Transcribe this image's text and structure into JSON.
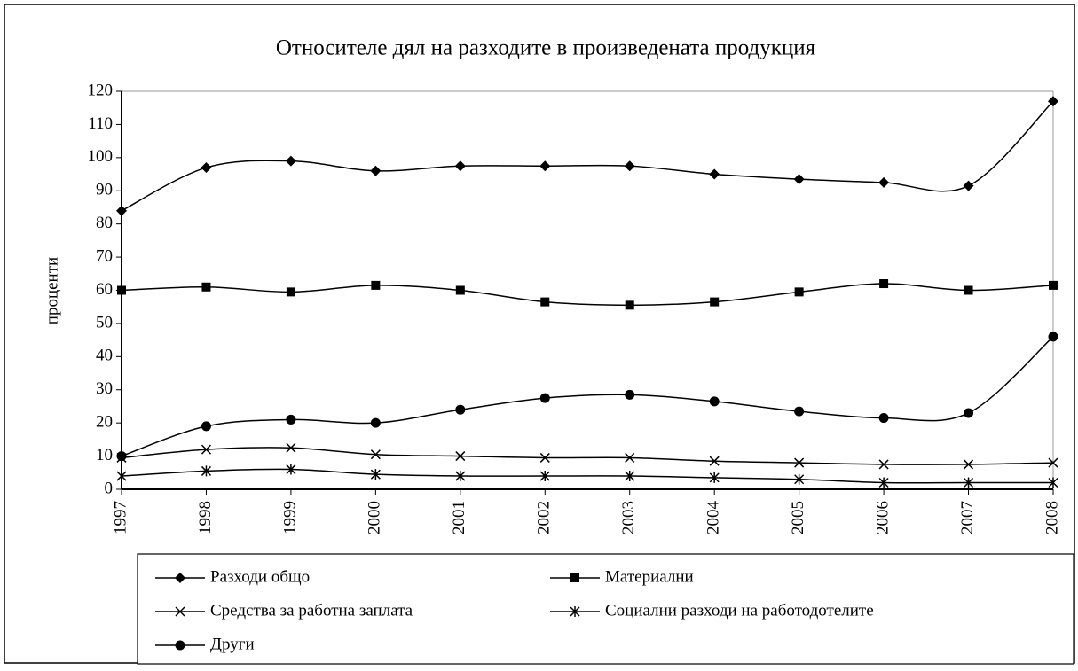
{
  "chart_data": {
    "type": "line",
    "title": "Относителе дял на разходите в произведената продукция",
    "y_label": "проценти",
    "categories": [
      "1997",
      "1998",
      "1999",
      "2000",
      "2001",
      "2002",
      "2003",
      "2004",
      "2005",
      "2006",
      "2007",
      "2008"
    ],
    "ylim": [
      0,
      120
    ],
    "yticks": [
      0,
      10,
      20,
      30,
      40,
      50,
      60,
      70,
      80,
      90,
      100,
      110,
      120
    ],
    "smooth": true,
    "series": [
      {
        "name": "Разходи общо",
        "color": "#000000",
        "marker": "diamond",
        "values": [
          84,
          97,
          99,
          96,
          97.5,
          97.5,
          97.5,
          95,
          93.5,
          92.5,
          91.5,
          117
        ]
      },
      {
        "name": "Материални",
        "color": "#000000",
        "marker": "square",
        "values": [
          60,
          61,
          59.5,
          61.5,
          60,
          56.5,
          55.5,
          56.5,
          59.5,
          62,
          60,
          61.5
        ]
      },
      {
        "name": "Средства за работна заплата",
        "color": "#000000",
        "marker": "x",
        "values": [
          9.5,
          12,
          12.5,
          10.5,
          10,
          9.5,
          9.5,
          8.5,
          8,
          7.5,
          7.5,
          8
        ]
      },
      {
        "name": "Социални разходи на работодотелите",
        "color": "#000000",
        "marker": "star",
        "values": [
          4,
          5.5,
          6,
          4.5,
          4,
          4,
          4,
          3.5,
          3,
          2,
          2,
          2
        ]
      },
      {
        "name": "Други",
        "color": "#000000",
        "marker": "circle",
        "values": [
          10,
          19,
          21,
          20,
          24,
          27.5,
          28.5,
          26.5,
          23.5,
          21.5,
          23,
          46
        ]
      }
    ]
  }
}
